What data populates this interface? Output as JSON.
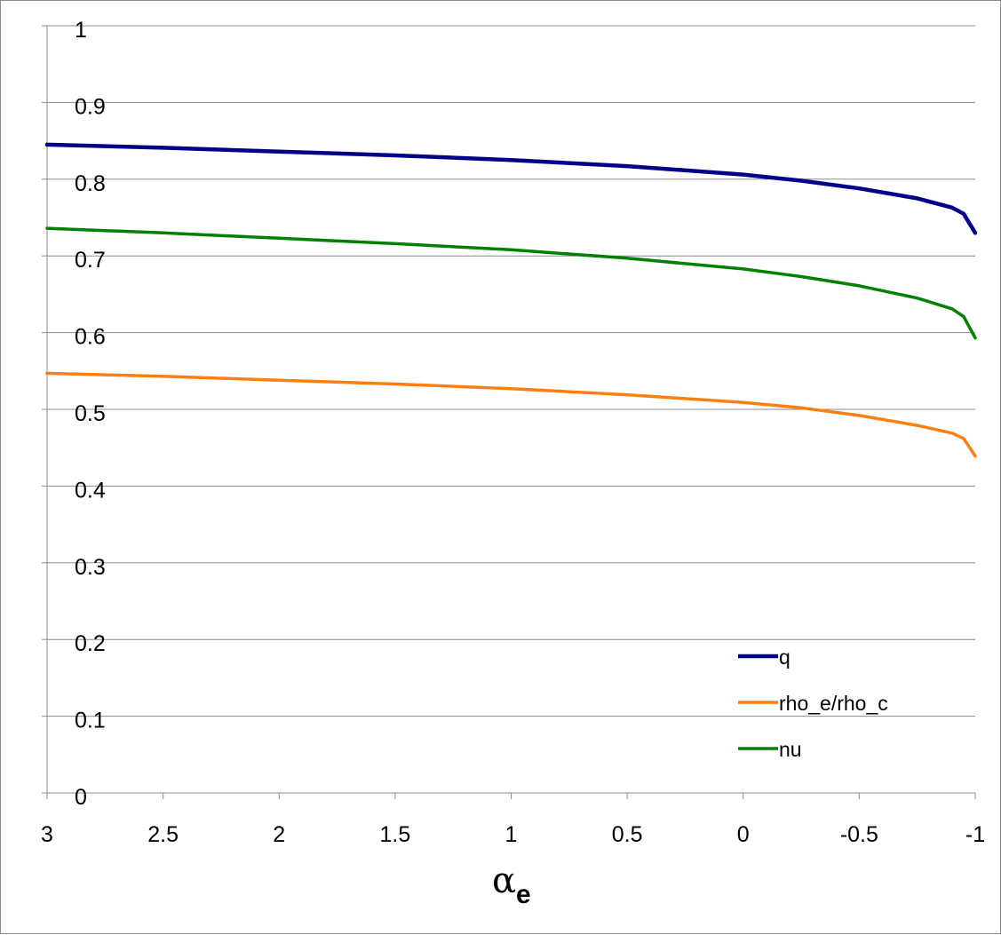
{
  "chart_data": {
    "type": "line",
    "title": "",
    "xlabel": "α",
    "xlabel_subscript": "e",
    "ylabel": "",
    "xlim": [
      3,
      -1
    ],
    "ylim": [
      0,
      1
    ],
    "x_reversed": true,
    "grid": "horizontal",
    "legend_position": "bottom-right",
    "x_ticks": [
      3,
      2.5,
      2,
      1.5,
      1,
      0.5,
      0,
      -0.5,
      -1
    ],
    "x_tick_labels": [
      "3",
      "2.5",
      "2",
      "1.5",
      "1",
      "0.5",
      "0",
      "-0.5",
      "-1"
    ],
    "y_ticks": [
      0,
      0.1,
      0.2,
      0.3,
      0.4,
      0.5,
      0.6,
      0.7,
      0.8,
      0.9,
      1
    ],
    "y_tick_labels": [
      "0",
      "0.1",
      "0.2",
      "0.3",
      "0.4",
      "0.5",
      "0.6",
      "0.7",
      "0.8",
      "0.9",
      "1"
    ],
    "x": [
      3,
      2.5,
      2,
      1.5,
      1,
      0.5,
      0,
      -0.25,
      -0.5,
      -0.75,
      -0.9,
      -0.95,
      -1
    ],
    "series": [
      {
        "name": "q",
        "color": "#00008b",
        "values": [
          0.845,
          0.841,
          0.836,
          0.831,
          0.825,
          0.817,
          0.806,
          0.798,
          0.788,
          0.775,
          0.763,
          0.755,
          0.73
        ]
      },
      {
        "name": "rho_e/rho_c",
        "color": "#ff7f0e",
        "values": [
          0.547,
          0.543,
          0.538,
          0.533,
          0.527,
          0.519,
          0.509,
          0.502,
          0.492,
          0.479,
          0.469,
          0.462,
          0.439
        ]
      },
      {
        "name": "nu",
        "color": "#008000",
        "values": [
          0.736,
          0.73,
          0.723,
          0.716,
          0.708,
          0.697,
          0.683,
          0.673,
          0.661,
          0.645,
          0.631,
          0.621,
          0.593
        ]
      }
    ]
  }
}
